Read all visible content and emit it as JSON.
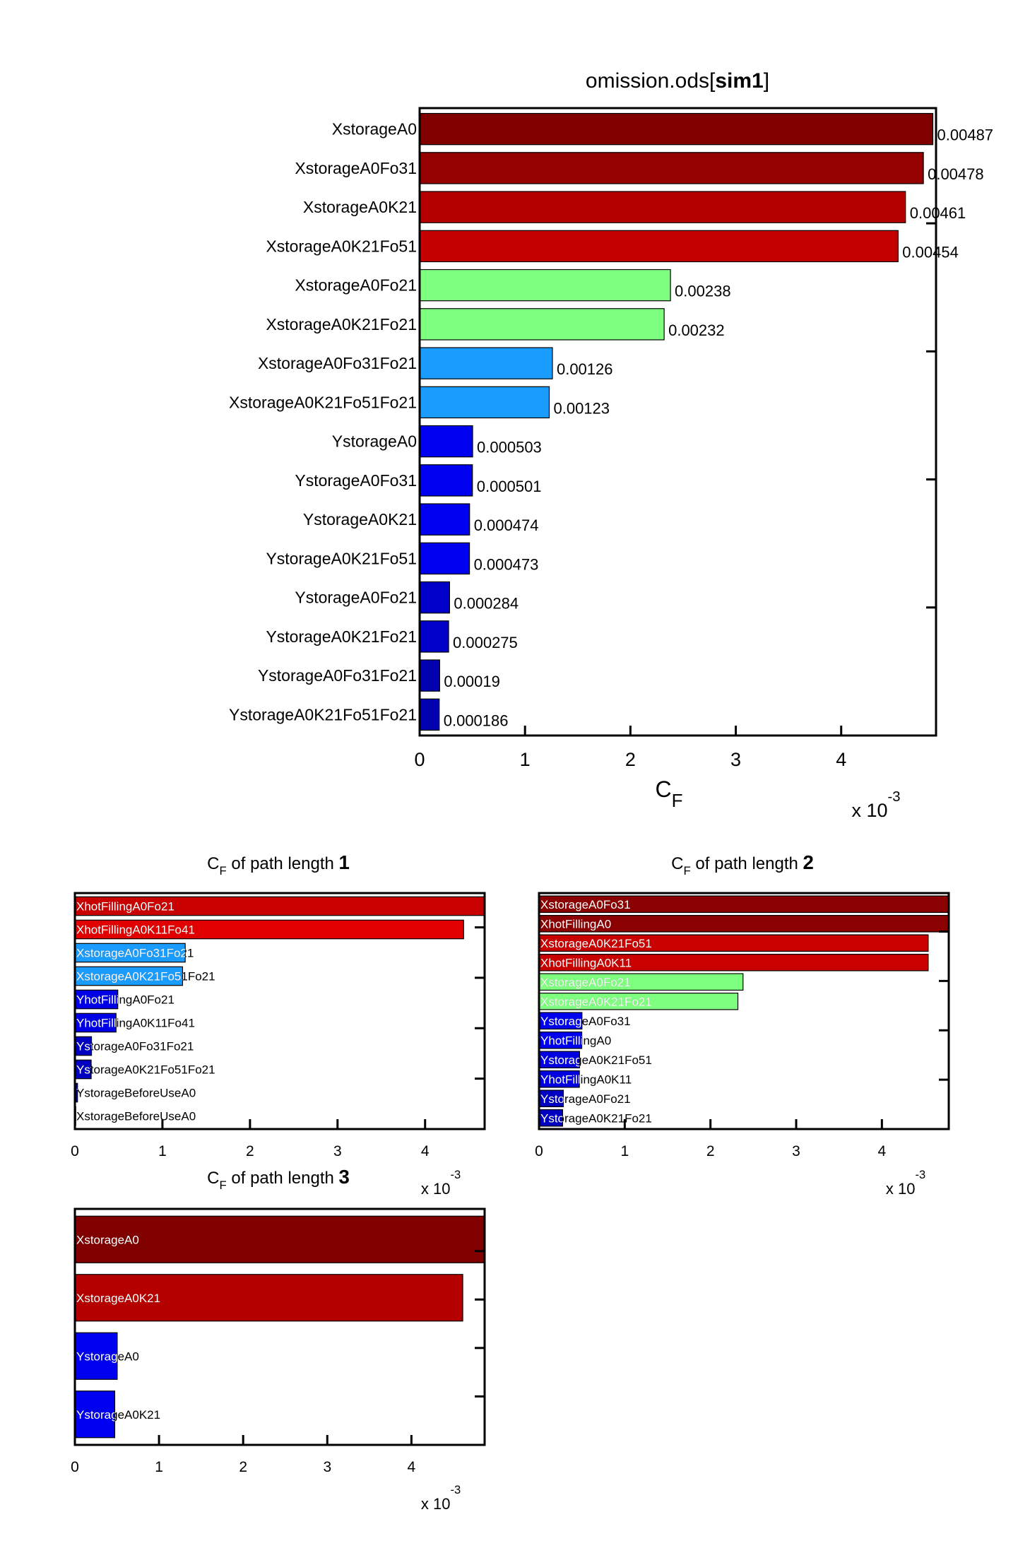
{
  "chart_data": [
    {
      "type": "bar",
      "orientation": "horizontal",
      "title": "omission.ods[",
      "title_bold": "sim1",
      "title_end": "]",
      "xlabel": "C",
      "xlabel_sub": "F",
      "x_multiplier": "x 10",
      "x_multiplier_exp": "-3",
      "xlim": [
        0,
        0.0049
      ],
      "xticks": [
        0,
        1,
        2,
        3,
        4
      ],
      "bar_labels": "outside",
      "categories": [
        "XstorageA0",
        "XstorageA0Fo31",
        "XstorageA0K21",
        "XstorageA0K21Fo51",
        "XstorageA0Fo21",
        "XstorageA0K21Fo21",
        "XstorageA0Fo31Fo21",
        "XstorageA0K21Fo51Fo21",
        "YstorageA0",
        "YstorageA0Fo31",
        "YstorageA0K21",
        "YstorageA0K21Fo51",
        "YstorageA0Fo21",
        "YstorageA0K21Fo21",
        "YstorageA0Fo31Fo21",
        "YstorageA0K21Fo51Fo21"
      ],
      "values": [
        0.00487,
        0.00478,
        0.00461,
        0.00454,
        0.00238,
        0.00232,
        0.00126,
        0.00123,
        0.000503,
        0.000501,
        0.000474,
        0.000473,
        0.000284,
        0.000275,
        0.00019,
        0.000186
      ],
      "value_labels": [
        "0.00487",
        "0.00478",
        "0.00461",
        "0.00454",
        "0.00238",
        "0.00232",
        "0.00126",
        "0.00123",
        "0.000503",
        "0.000501",
        "0.000474",
        "0.000473",
        "0.000284",
        "0.000275",
        "0.00019",
        "0.000186"
      ],
      "colors": [
        "#800000",
        "#950000",
        "#b50000",
        "#c40000",
        "#7fff7f",
        "#7fff7f",
        "#1a9cff",
        "#1a9cff",
        "#0000f0",
        "#0000f0",
        "#0000f0",
        "#0000f0",
        "#0000c8",
        "#0000c8",
        "#0000b0",
        "#0000b0"
      ]
    },
    {
      "type": "bar",
      "orientation": "horizontal",
      "title": "C",
      "title_sub": "F",
      "title_rest": " of path length ",
      "title_bold": "1",
      "x_multiplier": "x 10",
      "x_multiplier_exp": "-3",
      "xlim": [
        0,
        0.00468
      ],
      "xticks": [
        0,
        1,
        2,
        3,
        4
      ],
      "bar_labels": "inside",
      "categories": [
        "XhotFillingA0Fo21",
        "XhotFillingA0K11Fo41",
        "XstorageA0Fo31Fo21",
        "XstorageA0K21Fo51Fo21",
        "YhotFillingA0Fo21",
        "YhotFillingA0K11Fo41",
        "YstorageA0Fo31Fo21",
        "YstorageA0K21Fo51Fo21",
        "YstorageBeforeUseA0",
        "XstorageBeforeUseA0"
      ],
      "values": [
        0.00468,
        0.00444,
        0.00126,
        0.00123,
        0.00049,
        0.00047,
        0.00019,
        0.000186,
        3e-05,
        1e-05
      ],
      "colors": [
        "#c80000",
        "#e00000",
        "#1a9cff",
        "#1a9cff",
        "#0000e6",
        "#0000e6",
        "#0000c0",
        "#0000c0",
        "#000080",
        "#000080"
      ]
    },
    {
      "type": "bar",
      "orientation": "horizontal",
      "title": "C",
      "title_sub": "F",
      "title_rest": " of path length ",
      "title_bold": "2",
      "x_multiplier": "x 10",
      "x_multiplier_exp": "-3",
      "xlim": [
        0,
        0.00478
      ],
      "xticks": [
        0,
        1,
        2,
        3,
        4
      ],
      "bar_labels": "inside",
      "categories": [
        "XstorageA0Fo31",
        "XhotFillingA0",
        "XstorageA0K21Fo51",
        "XhotFillingA0K11",
        "XstorageA0Fo21",
        "XstorageA0K21Fo21",
        "YstorageA0Fo31",
        "YhotFillingA0",
        "YstorageA0K21Fo51",
        "YhotFillingA0K11",
        "YstorageA0Fo21",
        "YstorageA0K21Fo21"
      ],
      "values": [
        0.00478,
        0.00478,
        0.00454,
        0.00454,
        0.00238,
        0.00232,
        0.000501,
        0.000499,
        0.000473,
        0.000471,
        0.000284,
        0.000275
      ],
      "colors": [
        "#8b0000",
        "#8b0000",
        "#c80000",
        "#c80000",
        "#7fff7f",
        "#7fff7f",
        "#0000f0",
        "#0000f0",
        "#0000e0",
        "#0000e0",
        "#0000c0",
        "#0000c0"
      ]
    },
    {
      "type": "bar",
      "orientation": "horizontal",
      "title": "C",
      "title_sub": "F",
      "title_rest": " of path length ",
      "title_bold": "3",
      "x_multiplier": "x 10",
      "x_multiplier_exp": "-3",
      "xlim": [
        0,
        0.00487
      ],
      "xticks": [
        0,
        1,
        2,
        3,
        4
      ],
      "bar_labels": "inside",
      "categories": [
        "XstorageA0",
        "XstorageA0K21",
        "YstorageA0",
        "YstorageA0K21"
      ],
      "values": [
        0.00487,
        0.00461,
        0.000503,
        0.000474
      ],
      "colors": [
        "#800000",
        "#b50000",
        "#0000f0",
        "#0000f0"
      ]
    }
  ]
}
